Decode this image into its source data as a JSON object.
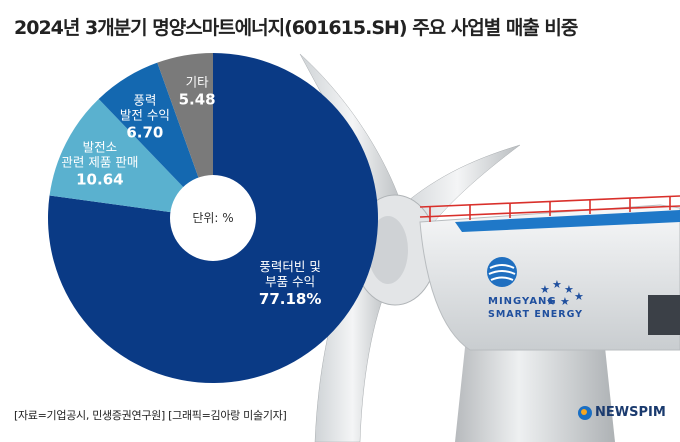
{
  "title": "2024년 3개분기 명양스마트에너지(601615.SH) 주요 사업별 매출 비중",
  "chart_data": {
    "type": "pie",
    "unit_label": "단위: %",
    "slices": [
      {
        "name": "풍력터빈 및 부품 수익",
        "name_lines": [
          "풍력터빈 및",
          "부품 수익"
        ],
        "value": 77.18,
        "value_label": "77.18%",
        "color": "#0a3a85"
      },
      {
        "name": "발전소 관련 제품 판매",
        "name_lines": [
          "발전소",
          "관련 제품 판매"
        ],
        "value": 10.64,
        "value_label": "10.64",
        "color": "#5ab1cf"
      },
      {
        "name": "풍력 발전 수익",
        "name_lines": [
          "풍력",
          "발전 수익"
        ],
        "value": 6.7,
        "value_label": "6.70",
        "color": "#1468b0"
      },
      {
        "name": "기타",
        "name_lines": [
          "기타"
        ],
        "value": 5.48,
        "value_label": "5.48",
        "color": "#7a7a7a"
      }
    ]
  },
  "nacelle": {
    "brand_line1": "MINGYANG",
    "brand_line2": "SMART ENERGY"
  },
  "footer": {
    "source": "[자료=기업공시, 민생증권연구원] [그래픽=김아랑 미술기자]",
    "brand": "NEWSPIM"
  }
}
